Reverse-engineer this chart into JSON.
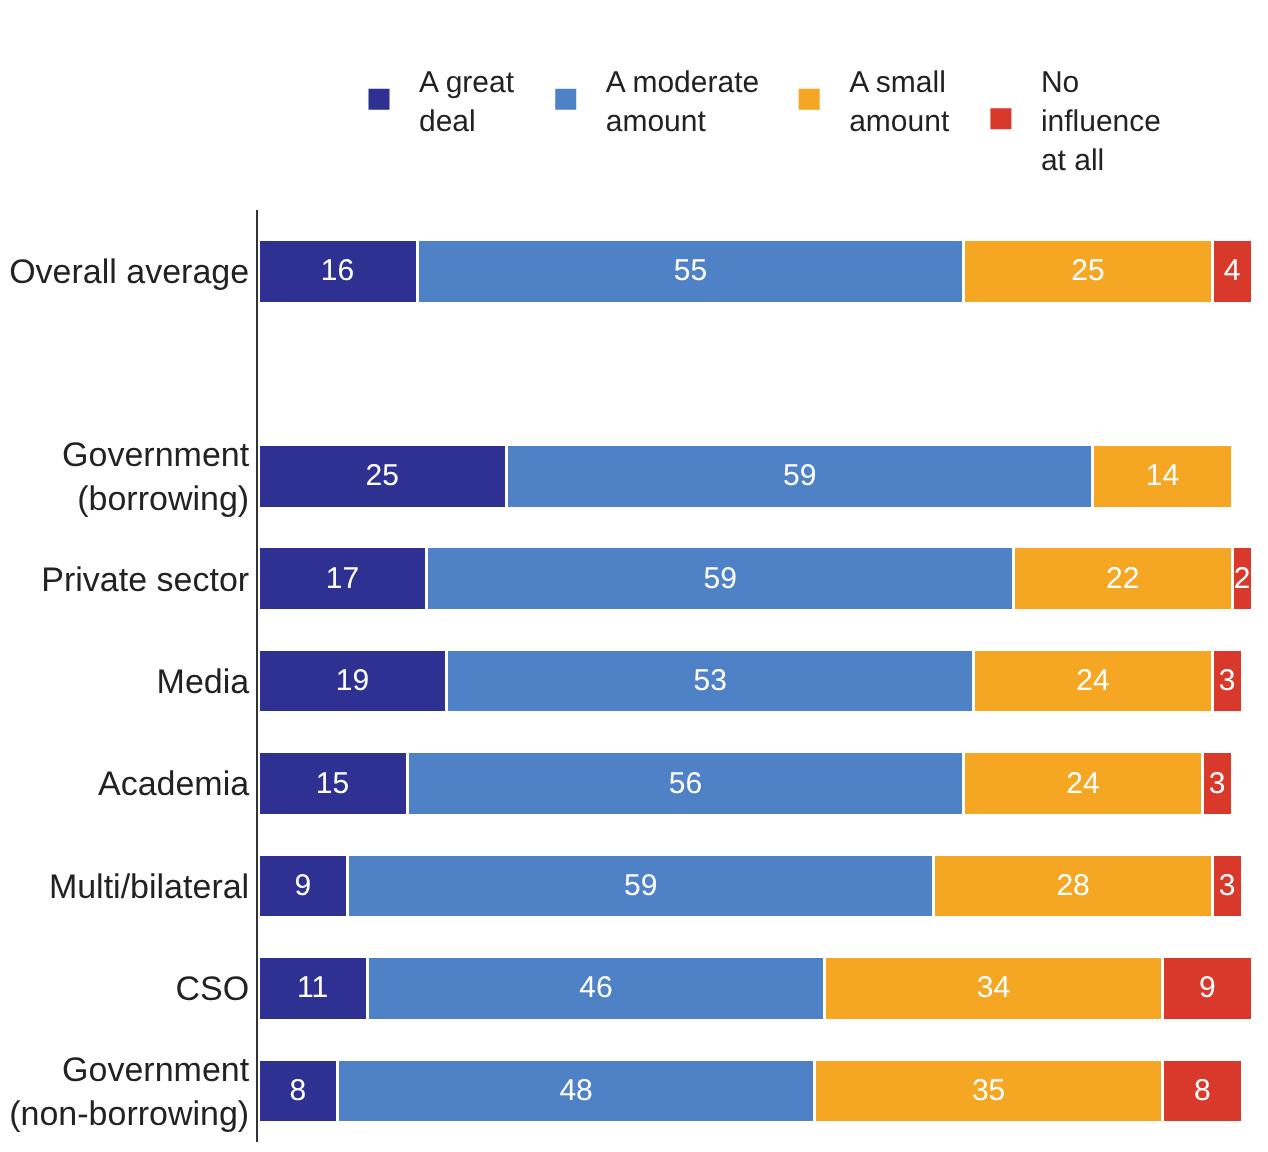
{
  "chart_data": {
    "type": "bar",
    "orientation": "horizontal",
    "stacked": true,
    "data_labels": true,
    "legend": "top",
    "tick_labels": "y",
    "xlim": [
      0,
      100
    ],
    "categories": [
      "Overall average",
      null,
      "Government\n(borrowing)",
      "Private sector",
      "Media",
      "Academia",
      "Multi/bilateral",
      "CSO",
      "Government\n(non-borrowing)"
    ],
    "series": [
      {
        "name": "A great\ndeal",
        "color": "#2e3192",
        "values": [
          16,
          null,
          25,
          17,
          19,
          15,
          9,
          11,
          8
        ]
      },
      {
        "name": "A moderate\namount",
        "color": "#4f81c7",
        "values": [
          55,
          null,
          59,
          59,
          53,
          56,
          59,
          46,
          48
        ]
      },
      {
        "name": "A small\namount",
        "color": "#f5a623",
        "values": [
          25,
          null,
          14,
          22,
          24,
          24,
          28,
          34,
          35
        ]
      },
      {
        "name": "No\ninfluence\nat all",
        "color": "#d9392b",
        "values": [
          4,
          null,
          null,
          2,
          3,
          3,
          3,
          9,
          8
        ]
      }
    ]
  }
}
